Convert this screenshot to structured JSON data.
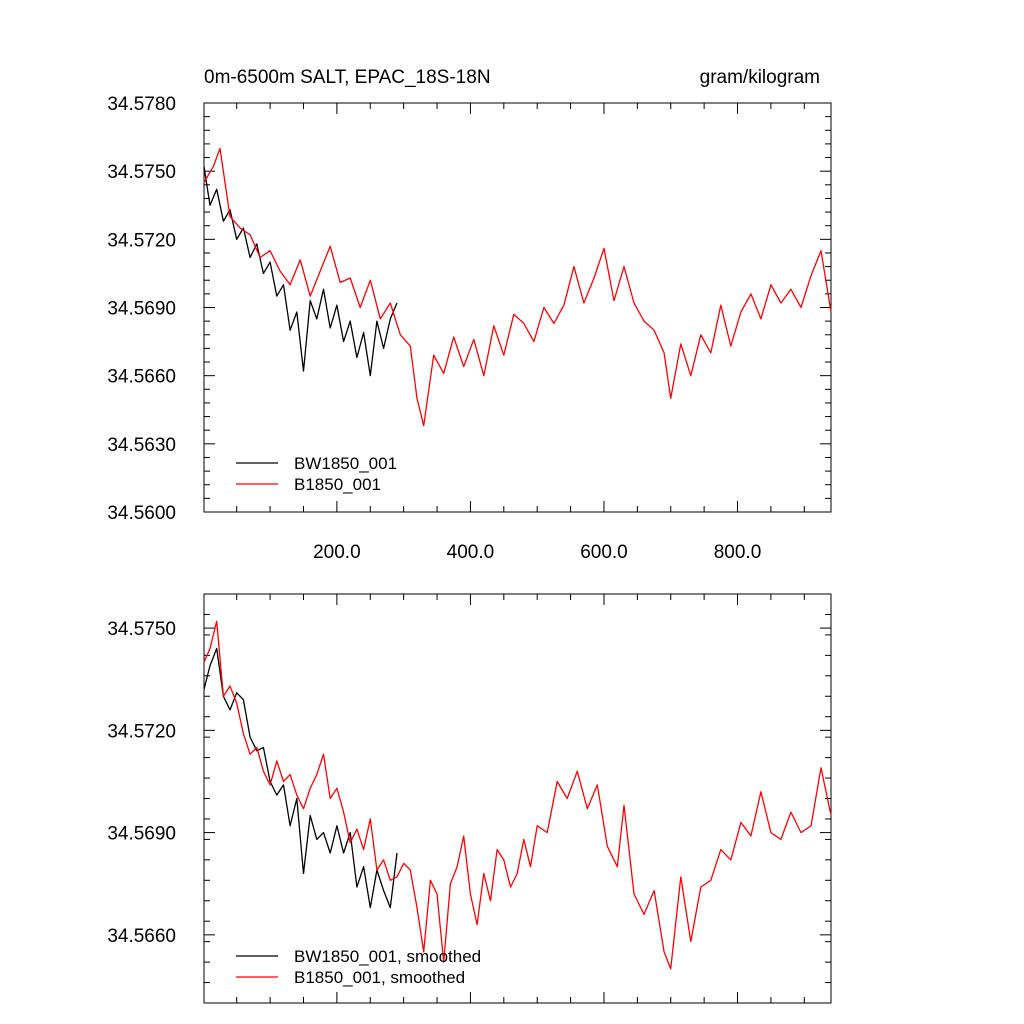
{
  "chart_data": [
    {
      "type": "line",
      "title": "0m-6500m SALT, EPAC_18S-18N",
      "units": "gram/kilogram",
      "xlabel": "",
      "ylabel": "",
      "xlim": [
        1,
        940
      ],
      "ylim": [
        34.56,
        34.578
      ],
      "x_ticks": [
        200,
        400,
        600,
        800
      ],
      "x_tick_labels": [
        "200.0",
        "400.0",
        "600.0",
        "800.0"
      ],
      "y_ticks": [
        34.56,
        34.563,
        34.566,
        34.569,
        34.572,
        34.575,
        34.578
      ],
      "y_tick_labels": [
        "34.5600",
        "34.5630",
        "34.5660",
        "34.5690",
        "34.5720",
        "34.5750",
        "34.5780"
      ],
      "legend_position": "bottom-left",
      "grid": false,
      "series": [
        {
          "name": "BW1850_001",
          "color": "#000000",
          "x": [
            1,
            10,
            20,
            30,
            40,
            50,
            60,
            70,
            80,
            90,
            100,
            110,
            120,
            130,
            140,
            150,
            160,
            170,
            180,
            190,
            200,
            210,
            220,
            230,
            240,
            250,
            260,
            270,
            280,
            290
          ],
          "y": [
            34.5752,
            34.5735,
            34.5742,
            34.5728,
            34.5733,
            34.572,
            34.5725,
            34.5712,
            34.5718,
            34.5705,
            34.571,
            34.5695,
            34.57,
            34.568,
            34.5688,
            34.5662,
            34.5693,
            34.5685,
            34.5698,
            34.5681,
            34.5691,
            34.5675,
            34.5684,
            34.5668,
            34.5679,
            34.566,
            34.5684,
            34.5672,
            34.5685,
            34.5692
          ]
        },
        {
          "name": "B1850_001",
          "color": "#ff0000",
          "x": [
            1,
            15,
            25,
            40,
            55,
            70,
            85,
            100,
            115,
            130,
            145,
            160,
            175,
            190,
            205,
            220,
            235,
            250,
            265,
            280,
            295,
            310,
            320,
            330,
            345,
            360,
            375,
            390,
            405,
            420,
            435,
            450,
            465,
            480,
            495,
            510,
            525,
            540,
            555,
            570,
            585,
            600,
            615,
            630,
            645,
            660,
            675,
            690,
            700,
            715,
            730,
            745,
            760,
            775,
            790,
            805,
            820,
            835,
            850,
            865,
            880,
            895,
            910,
            925,
            940
          ],
          "y": [
            34.5745,
            34.5752,
            34.576,
            34.573,
            34.5725,
            34.5722,
            34.5712,
            34.5715,
            34.5706,
            34.57,
            34.5711,
            34.5695,
            34.5706,
            34.5717,
            34.5701,
            34.5703,
            34.569,
            34.5702,
            34.5685,
            34.5692,
            34.5678,
            34.5673,
            34.565,
            34.5638,
            34.5669,
            34.5661,
            34.5677,
            34.5664,
            34.5676,
            34.566,
            34.5682,
            34.5669,
            34.5687,
            34.5683,
            34.5675,
            34.569,
            34.5683,
            34.5691,
            34.5708,
            34.5692,
            34.5703,
            34.5716,
            34.5693,
            34.5708,
            34.5692,
            34.5684,
            34.568,
            34.567,
            34.565,
            34.5674,
            34.566,
            34.5678,
            34.567,
            34.5691,
            34.5673,
            34.5688,
            34.5696,
            34.5685,
            34.57,
            34.5692,
            34.5698,
            34.569,
            34.5704,
            34.5715,
            34.5688
          ]
        }
      ]
    },
    {
      "type": "line",
      "title": "",
      "xlabel": "",
      "ylabel": "",
      "xlim": [
        1,
        940
      ],
      "ylim": [
        34.564,
        34.576
      ],
      "x_ticks": [
        200,
        400,
        600,
        800
      ],
      "y_ticks": [
        34.566,
        34.569,
        34.572,
        34.575
      ],
      "y_tick_labels": [
        "34.5660",
        "34.5690",
        "34.5720",
        "34.5750"
      ],
      "legend_position": "bottom-left",
      "grid": false,
      "series": [
        {
          "name": "BW1850_001, smoothed",
          "color": "#000000",
          "x": [
            1,
            10,
            20,
            30,
            40,
            50,
            60,
            70,
            80,
            90,
            100,
            110,
            120,
            130,
            140,
            150,
            160,
            170,
            180,
            190,
            200,
            210,
            220,
            230,
            240,
            250,
            260,
            270,
            280,
            290
          ],
          "y": [
            34.5732,
            34.5739,
            34.5744,
            34.573,
            34.5726,
            34.5731,
            34.5729,
            34.5718,
            34.5714,
            34.5715,
            34.5705,
            34.5701,
            34.5704,
            34.5692,
            34.57,
            34.5678,
            34.5695,
            34.5688,
            34.569,
            34.5684,
            34.5692,
            34.5684,
            34.569,
            34.5674,
            34.568,
            34.5668,
            34.5679,
            34.5673,
            34.5668,
            34.5684
          ]
        },
        {
          "name": "B1850_001, smoothed",
          "color": "#ff0000",
          "x": [
            1,
            10,
            20,
            30,
            40,
            50,
            60,
            70,
            80,
            90,
            100,
            110,
            120,
            130,
            140,
            150,
            160,
            170,
            180,
            190,
            200,
            210,
            220,
            230,
            240,
            250,
            260,
            270,
            280,
            290,
            300,
            310,
            320,
            330,
            340,
            350,
            360,
            370,
            380,
            390,
            400,
            410,
            420,
            430,
            440,
            450,
            460,
            470,
            480,
            490,
            500,
            515,
            530,
            545,
            560,
            575,
            590,
            605,
            620,
            630,
            645,
            660,
            675,
            690,
            700,
            715,
            730,
            745,
            760,
            775,
            790,
            805,
            820,
            835,
            850,
            865,
            880,
            895,
            910,
            925,
            940
          ],
          "y": [
            34.574,
            34.5744,
            34.5752,
            34.573,
            34.5733,
            34.5728,
            34.5719,
            34.5713,
            34.5715,
            34.5708,
            34.5704,
            34.5711,
            34.5705,
            34.5707,
            34.5701,
            34.5697,
            34.5703,
            34.5707,
            34.5713,
            34.57,
            34.5703,
            34.5696,
            34.5687,
            34.5691,
            34.5685,
            34.5694,
            34.5679,
            34.5682,
            34.5676,
            34.5677,
            34.5681,
            34.5679,
            34.5668,
            34.5655,
            34.5676,
            34.5672,
            34.5652,
            34.5675,
            34.568,
            34.5689,
            34.5672,
            34.5663,
            34.5678,
            34.567,
            34.5685,
            34.5682,
            34.5674,
            34.5678,
            34.5688,
            34.568,
            34.5692,
            34.569,
            34.5705,
            34.57,
            34.5708,
            34.5697,
            34.5704,
            34.5686,
            34.568,
            34.5698,
            34.5672,
            34.5666,
            34.5673,
            34.5655,
            34.565,
            34.5677,
            34.5658,
            34.5674,
            34.5676,
            34.5685,
            34.5682,
            34.5693,
            34.5689,
            34.5702,
            34.569,
            34.5688,
            34.5696,
            34.569,
            34.5692,
            34.5709,
            34.5695
          ]
        }
      ]
    }
  ]
}
